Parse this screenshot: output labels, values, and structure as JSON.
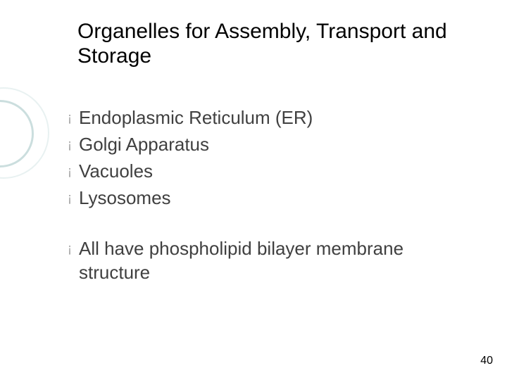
{
  "slide": {
    "title": "Organelles for Assembly, Transport and Storage",
    "bullets_group1": [
      {
        "text": "Endoplasmic Reticulum (ER)"
      },
      {
        "text": "Golgi Apparatus"
      },
      {
        "text": "Vacuoles"
      },
      {
        "text": "Lysosomes"
      }
    ],
    "bullets_group2": [
      {
        "text": "All have phospholipid bilayer membrane structure"
      }
    ],
    "page_number": "40",
    "style": {
      "background_color": "#ffffff",
      "title_color": "#000000",
      "title_fontsize_pt": 30,
      "title_font_family": "Arial",
      "body_text_color": "#404040",
      "body_fontsize_pt": 26,
      "body_font_family": "Verdana",
      "bullet_glyph": "¡",
      "bullet_color": "#a0a0a0",
      "bullet_fontsize_pt": 18,
      "accent_circle_color": "#6aa0a0",
      "page_number_color": "#000000",
      "page_number_fontsize_pt": 16
    }
  }
}
